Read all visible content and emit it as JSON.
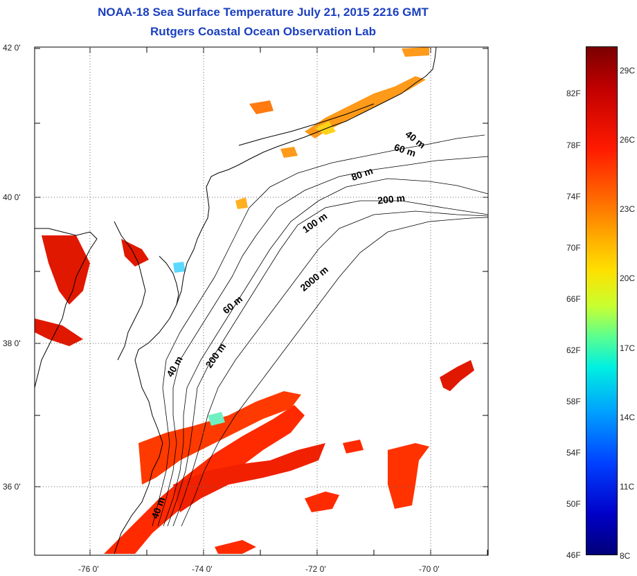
{
  "header": {
    "title_line1": "NOAA-18 Sea Surface Temperature July 21, 2015 2216 GMT",
    "title_line2": "Rutgers Coastal Ocean Observation Lab"
  },
  "map": {
    "lat_labels": [
      "42 0'",
      "40 0'",
      "38 0'",
      "36 0'"
    ],
    "lon_labels": [
      "-76 0'",
      "-74 0'",
      "-72 0'",
      "-70 0'"
    ],
    "isobath_labels": [
      "40 m",
      "60 m",
      "80 m",
      "200 m",
      "100 m",
      "2000 m",
      "60 m",
      "40 m",
      "200 m",
      "40 m"
    ],
    "colors": {
      "frame": "#000000",
      "grid": "#555555",
      "warm": "#ff2a00",
      "hot": "#e01000",
      "mild": "#ff9a1a",
      "cool": "#ffd21a",
      "cold": "#80ffa0"
    }
  },
  "colorbar": {
    "fahrenheit": [
      "82F",
      "78F",
      "74F",
      "70F",
      "66F",
      "62F",
      "58F",
      "54F",
      "50F",
      "46F"
    ],
    "celsius": [
      "29C",
      "26C",
      "23C",
      "20C",
      "17C",
      "14C",
      "11C",
      "8C"
    ]
  }
}
